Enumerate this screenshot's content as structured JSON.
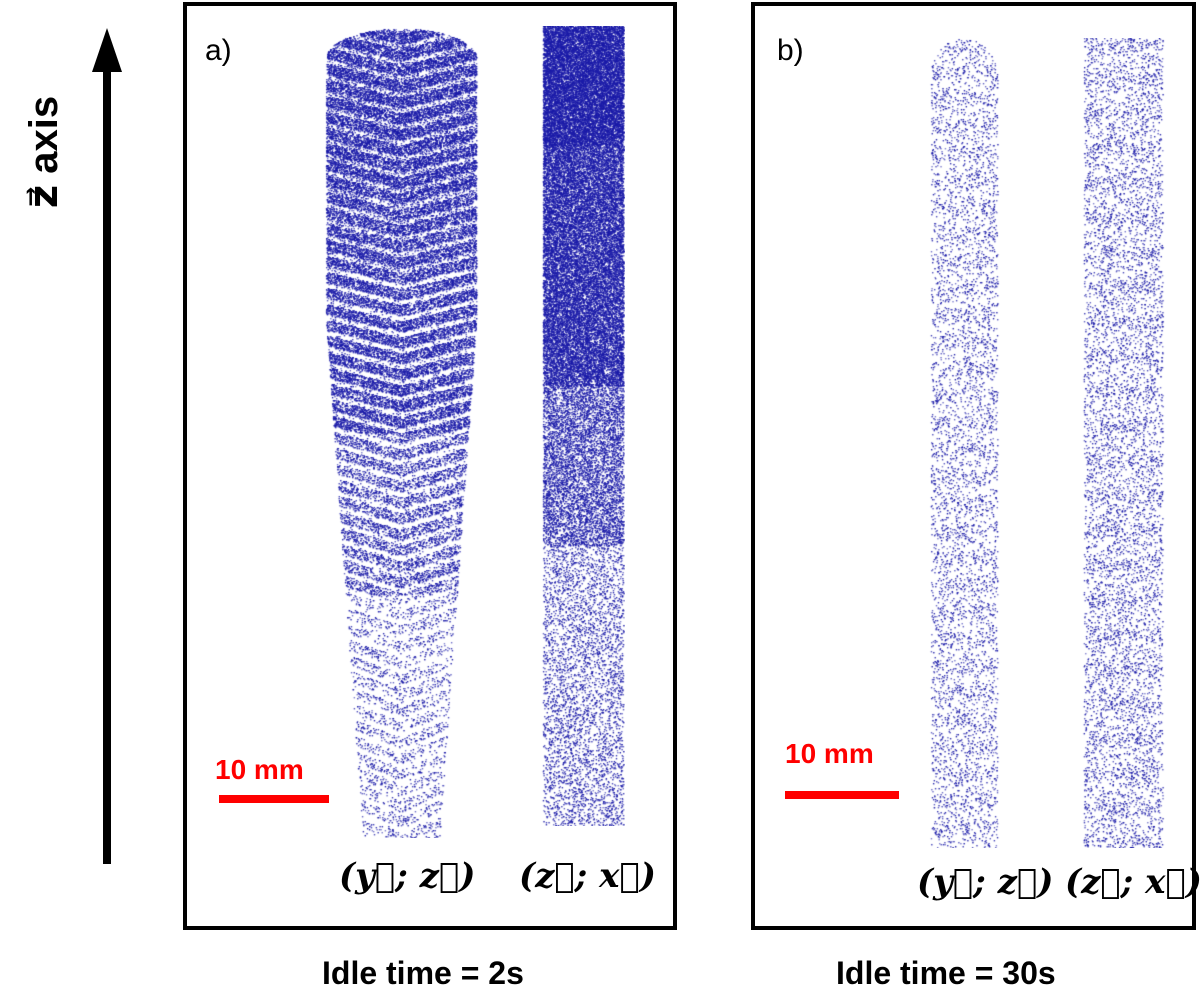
{
  "axis": {
    "label": "z⃗ axis"
  },
  "panels": [
    {
      "label": "a)",
      "scale_label": "10 mm",
      "view_labels": [
        "(y⃗; z⃗)",
        "(z⃗; x⃗)"
      ],
      "caption": "Idle time = 2s"
    },
    {
      "label": "b)",
      "scale_label": "10 mm",
      "view_labels": [
        "(y⃗; z⃗)",
        "(z⃗; x⃗)"
      ],
      "caption": "Idle time = 30s"
    }
  ],
  "colors": {
    "points": "#1a1aa8",
    "scale_bar": "#ff0000",
    "frame": "#000000"
  }
}
